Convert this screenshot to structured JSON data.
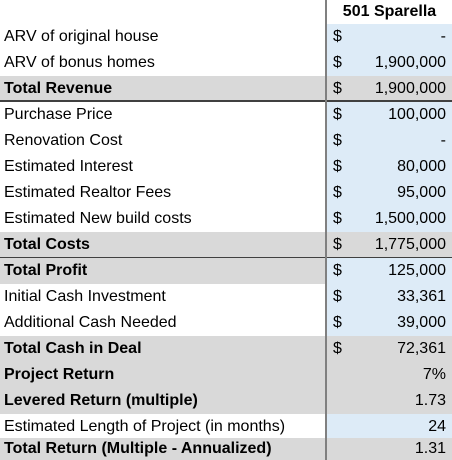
{
  "header": {
    "property": "501 Sparella"
  },
  "rows": [
    {
      "label": "ARV of original house",
      "cur": "$",
      "value": "-"
    },
    {
      "label": "ARV of bonus homes",
      "cur": "$",
      "value": "1,900,000"
    },
    {
      "label": "Total Revenue",
      "cur": "$",
      "value": "1,900,000"
    },
    {
      "label": "Purchase Price",
      "cur": "$",
      "value": "100,000"
    },
    {
      "label": "Renovation Cost",
      "cur": "$",
      "value": "-"
    },
    {
      "label": "Estimated Interest",
      "cur": "$",
      "value": "80,000"
    },
    {
      "label": "Estimated Realtor Fees",
      "cur": "$",
      "value": "95,000"
    },
    {
      "label": "Estimated New build costs",
      "cur": "$",
      "value": "1,500,000"
    },
    {
      "label": "Total Costs",
      "cur": "$",
      "value": "1,775,000"
    },
    {
      "label": "Total Profit",
      "cur": "$",
      "value": "125,000"
    },
    {
      "label": "Initial Cash Investment",
      "cur": "$",
      "value": "33,361"
    },
    {
      "label": "Additional Cash Needed",
      "cur": "$",
      "value": "39,000"
    },
    {
      "label": "Total Cash in Deal",
      "cur": "$",
      "value": "72,361"
    },
    {
      "label": "Project Return",
      "cur": "",
      "value": "7%"
    },
    {
      "label": "Levered Return (multiple)",
      "cur": "",
      "value": "1.73"
    },
    {
      "label": "Estimated Length of Project (in months)",
      "cur": "",
      "value": "24"
    },
    {
      "label": "Total Return (Multiple - Annualized)",
      "cur": "",
      "value": "1.31"
    }
  ]
}
